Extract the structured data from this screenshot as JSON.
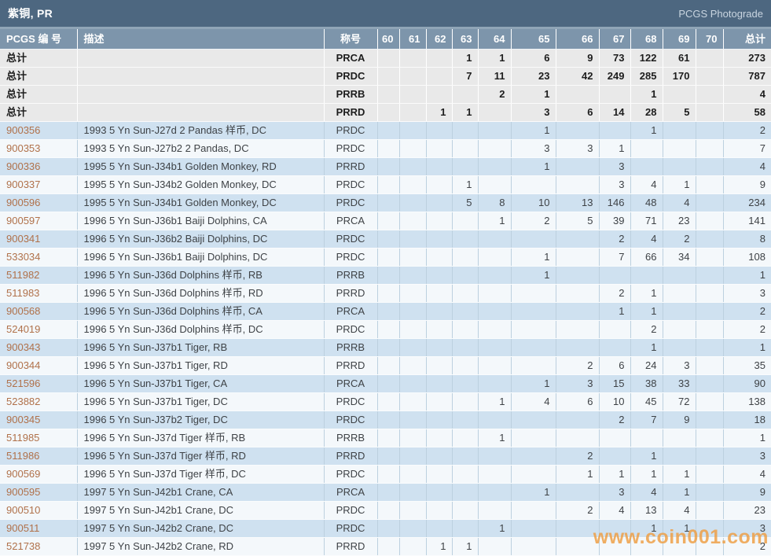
{
  "title_bar": {
    "title": "紫铜, PR",
    "right_label": "PCGS Photograde"
  },
  "watermark": "www.coin001.com",
  "colors": {
    "title_bar_bg": "#4d6780",
    "header_bg": "#7d95ab",
    "summary_row_bg": "#e9e9e9",
    "row_blue_bg": "#cfe1f0",
    "row_light_bg": "#f4f8fb",
    "link_color": "#b0714a",
    "watermark_color": "#ee9c40"
  },
  "table": {
    "header": {
      "pcgs_no": "PCGS 编 号",
      "description": "描述",
      "designation": "称号",
      "grades": [
        "60",
        "61",
        "62",
        "63",
        "64",
        "65",
        "66",
        "67",
        "68",
        "69",
        "70"
      ],
      "total": "总计"
    },
    "summary_rows": [
      {
        "label": "总计",
        "designation": "PRCA",
        "grades": {
          "63": 1,
          "64": 1,
          "65": 6,
          "66": 9,
          "67": 73,
          "68": 122,
          "69": 61
        },
        "total": 273
      },
      {
        "label": "总计",
        "designation": "PRDC",
        "grades": {
          "63": 7,
          "64": 11,
          "65": 23,
          "66": 42,
          "67": 249,
          "68": 285,
          "69": 170
        },
        "total": 787
      },
      {
        "label": "总计",
        "designation": "PRRB",
        "grades": {
          "64": 2,
          "65": 1,
          "68": 1
        },
        "total": 4
      },
      {
        "label": "总计",
        "designation": "PRRD",
        "grades": {
          "62": 1,
          "63": 1,
          "65": 3,
          "66": 6,
          "67": 14,
          "68": 28,
          "69": 5
        },
        "total": 58
      }
    ],
    "rows": [
      {
        "pcgs_no": "900356",
        "description": "1993 5 Yn Sun-J27d 2 Pandas 样币, DC",
        "designation": "PRDC",
        "grades": {
          "65": 1,
          "68": 1
        },
        "total": 2
      },
      {
        "pcgs_no": "900353",
        "description": "1993 5 Yn Sun-J27b2 2 Pandas, DC",
        "designation": "PRDC",
        "grades": {
          "65": 3,
          "66": 3,
          "67": 1
        },
        "total": 7
      },
      {
        "pcgs_no": "900336",
        "description": "1995 5 Yn Sun-J34b1 Golden Monkey, RD",
        "designation": "PRRD",
        "grades": {
          "65": 1,
          "67": 3
        },
        "total": 4
      },
      {
        "pcgs_no": "900337",
        "description": "1995 5 Yn Sun-J34b2 Golden Monkey, DC",
        "designation": "PRDC",
        "grades": {
          "63": 1,
          "67": 3,
          "68": 4,
          "69": 1
        },
        "total": 9
      },
      {
        "pcgs_no": "900596",
        "description": "1995 5 Yn Sun-J34b1 Golden Monkey, DC",
        "designation": "PRDC",
        "grades": {
          "63": 5,
          "64": 8,
          "65": 10,
          "66": 13,
          "67": 146,
          "68": 48,
          "69": 4
        },
        "total": 234
      },
      {
        "pcgs_no": "900597",
        "description": "1996 5 Yn Sun-J36b1 Baiji Dolphins, CA",
        "designation": "PRCA",
        "grades": {
          "64": 1,
          "65": 2,
          "66": 5,
          "67": 39,
          "68": 71,
          "69": 23
        },
        "total": 141
      },
      {
        "pcgs_no": "900341",
        "description": "1996 5 Yn Sun-J36b2 Baiji Dolphins, DC",
        "designation": "PRDC",
        "grades": {
          "67": 2,
          "68": 4,
          "69": 2
        },
        "total": 8
      },
      {
        "pcgs_no": "533034",
        "description": "1996 5 Yn Sun-J36b1 Baiji Dolphins, DC",
        "designation": "PRDC",
        "grades": {
          "65": 1,
          "67": 7,
          "68": 66,
          "69": 34
        },
        "total": 108
      },
      {
        "pcgs_no": "511982",
        "description": "1996 5 Yn Sun-J36d Dolphins 样币, RB",
        "designation": "PRRB",
        "grades": {
          "65": 1
        },
        "total": 1
      },
      {
        "pcgs_no": "511983",
        "description": "1996 5 Yn Sun-J36d Dolphins 样币, RD",
        "designation": "PRRD",
        "grades": {
          "67": 2,
          "68": 1
        },
        "total": 3
      },
      {
        "pcgs_no": "900568",
        "description": "1996 5 Yn Sun-J36d Dolphins 样币, CA",
        "designation": "PRCA",
        "grades": {
          "67": 1,
          "68": 1
        },
        "total": 2
      },
      {
        "pcgs_no": "524019",
        "description": "1996 5 Yn Sun-J36d Dolphins 样币, DC",
        "designation": "PRDC",
        "grades": {
          "68": 2
        },
        "total": 2
      },
      {
        "pcgs_no": "900343",
        "description": "1996 5 Yn Sun-J37b1 Tiger, RB",
        "designation": "PRRB",
        "grades": {
          "68": 1
        },
        "total": 1
      },
      {
        "pcgs_no": "900344",
        "description": "1996 5 Yn Sun-J37b1 Tiger, RD",
        "designation": "PRRD",
        "grades": {
          "66": 2,
          "67": 6,
          "68": 24,
          "69": 3
        },
        "total": 35
      },
      {
        "pcgs_no": "521596",
        "description": "1996 5 Yn Sun-J37b1 Tiger, CA",
        "designation": "PRCA",
        "grades": {
          "65": 1,
          "66": 3,
          "67": 15,
          "68": 38,
          "69": 33
        },
        "total": 90
      },
      {
        "pcgs_no": "523882",
        "description": "1996 5 Yn Sun-J37b1 Tiger, DC",
        "designation": "PRDC",
        "grades": {
          "64": 1,
          "65": 4,
          "66": 6,
          "67": 10,
          "68": 45,
          "69": 72
        },
        "total": 138
      },
      {
        "pcgs_no": "900345",
        "description": "1996 5 Yn Sun-J37b2 Tiger, DC",
        "designation": "PRDC",
        "grades": {
          "67": 2,
          "68": 7,
          "69": 9
        },
        "total": 18
      },
      {
        "pcgs_no": "511985",
        "description": "1996 5 Yn Sun-J37d Tiger 样币, RB",
        "designation": "PRRB",
        "grades": {
          "64": 1
        },
        "total": 1
      },
      {
        "pcgs_no": "511986",
        "description": "1996 5 Yn Sun-J37d Tiger 样币, RD",
        "designation": "PRRD",
        "grades": {
          "66": 2,
          "68": 1
        },
        "total": 3
      },
      {
        "pcgs_no": "900569",
        "description": "1996 5 Yn Sun-J37d Tiger 样币, DC",
        "designation": "PRDC",
        "grades": {
          "66": 1,
          "67": 1,
          "68": 1,
          "69": 1
        },
        "total": 4
      },
      {
        "pcgs_no": "900595",
        "description": "1997 5 Yn Sun-J42b1 Crane, CA",
        "designation": "PRCA",
        "grades": {
          "65": 1,
          "67": 3,
          "68": 4,
          "69": 1
        },
        "total": 9
      },
      {
        "pcgs_no": "900510",
        "description": "1997 5 Yn Sun-J42b1 Crane, DC",
        "designation": "PRDC",
        "grades": {
          "66": 2,
          "67": 4,
          "68": 13,
          "69": 4
        },
        "total": 23
      },
      {
        "pcgs_no": "900511",
        "description": "1997 5 Yn Sun-J42b2 Crane, DC",
        "designation": "PRDC",
        "grades": {
          "64": 1,
          "68": 1,
          "69": 1
        },
        "total": 3
      },
      {
        "pcgs_no": "521738",
        "description": "1997 5 Yn Sun-J42b2 Crane, RD",
        "designation": "PRRD",
        "grades": {
          "62": 1,
          "63": 1
        },
        "total": 2
      }
    ]
  }
}
